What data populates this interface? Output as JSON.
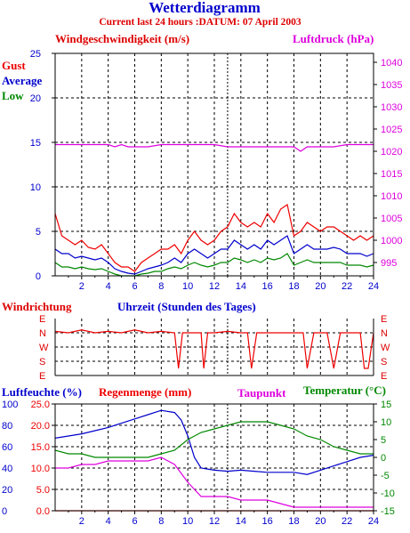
{
  "title": "Wetterdiagramm",
  "subtitle": "Current last 24 hours :DATUM: 07 April 2003",
  "colors": {
    "gust": "#ee0000",
    "average": "#0000cc",
    "low": "#008800",
    "pressure": "#dd00dd",
    "humidity": "#0000cc",
    "rain": "#ee0000",
    "dewpoint": "#dd00dd",
    "temperature": "#008800",
    "axis_left": "#0000cc",
    "axis_wind_left": "#dd0000",
    "axis_pressure": "#dd00dd",
    "axis_temp": "#008800"
  },
  "chart_data": [
    {
      "type": "line",
      "name": "wind-speed-and-pressure",
      "title_left": "Windgeschwindigkeit (m/s)",
      "title_right": "Luftdruck (hPa)",
      "legend": [
        "Gust",
        "Average",
        "Low"
      ],
      "x_range": [
        0,
        24
      ],
      "x_ticks": [
        "2",
        "4",
        "6",
        "8",
        "10",
        "12",
        "14",
        "16",
        "18",
        "20",
        "22",
        "24"
      ],
      "y_left_range": [
        0,
        25
      ],
      "y_left_ticks": [
        "0",
        "5",
        "10",
        "15",
        "20",
        "25"
      ],
      "y_right_range": [
        992,
        1042
      ],
      "y_right_ticks": [
        "995",
        "1000",
        "1005",
        "1010",
        "1015",
        "1020",
        "1025",
        "1030",
        "1035",
        "1040"
      ],
      "marker_x": 13,
      "series": [
        {
          "name": "Gust",
          "x": [
            0,
            0.5,
            1,
            1.5,
            2,
            2.5,
            3,
            3.5,
            4,
            4.5,
            5,
            5.5,
            6,
            6.5,
            7,
            7.5,
            8,
            8.5,
            9,
            9.5,
            10,
            10.5,
            11,
            11.5,
            12,
            12.5,
            13,
            13.5,
            14,
            14.5,
            15,
            15.5,
            16,
            16.5,
            17,
            17.5,
            18,
            18.5,
            19,
            19.5,
            20,
            20.5,
            21,
            21.5,
            22,
            22.5,
            23,
            23.5,
            24
          ],
          "values": [
            7,
            4.5,
            4,
            3.5,
            4,
            3.2,
            3,
            3.5,
            2.5,
            1.5,
            1,
            1,
            0.5,
            1.5,
            2,
            2.5,
            3,
            3,
            3.5,
            2.5,
            4,
            5,
            4,
            3.5,
            4,
            5,
            5.5,
            7,
            6,
            5.5,
            6,
            5.5,
            7,
            6,
            7.5,
            8,
            4.5,
            5,
            6,
            5.5,
            5,
            5.5,
            5.5,
            5,
            4.5,
            4,
            4.5,
            4,
            4.5
          ]
        },
        {
          "name": "Average",
          "x": [
            0,
            0.5,
            1,
            1.5,
            2,
            2.5,
            3,
            3.5,
            4,
            4.5,
            5,
            5.5,
            6,
            6.5,
            7,
            7.5,
            8,
            8.5,
            9,
            9.5,
            10,
            10.5,
            11,
            11.5,
            12,
            12.5,
            13,
            13.5,
            14,
            14.5,
            15,
            15.5,
            16,
            16.5,
            17,
            17.5,
            18,
            18.5,
            19,
            19.5,
            20,
            20.5,
            21,
            21.5,
            22,
            22.5,
            23,
            23.5,
            24
          ],
          "values": [
            3,
            2.5,
            2.5,
            2,
            2.2,
            2,
            1.8,
            2,
            1.5,
            0.8,
            0.5,
            0.3,
            0.2,
            0.5,
            0.8,
            1,
            1.2,
            1.5,
            2,
            1.5,
            2.5,
            3,
            2.5,
            2,
            2.5,
            3,
            3,
            4,
            3.5,
            3,
            3.5,
            3,
            4,
            3.5,
            4,
            4.5,
            2.5,
            3,
            3.5,
            3,
            3,
            3,
            3.2,
            3,
            2.5,
            2.5,
            2.5,
            2.2,
            2.5
          ]
        },
        {
          "name": "Low",
          "x": [
            0,
            0.5,
            1,
            1.5,
            2,
            2.5,
            3,
            3.5,
            4,
            4.5,
            5,
            5.5,
            6,
            6.5,
            7,
            7.5,
            8,
            8.5,
            9,
            9.5,
            10,
            10.5,
            11,
            11.5,
            12,
            12.5,
            13,
            13.5,
            14,
            14.5,
            15,
            15.5,
            16,
            16.5,
            17,
            17.5,
            18,
            18.5,
            19,
            19.5,
            20,
            20.5,
            21,
            21.5,
            22,
            22.5,
            23,
            23.5,
            24
          ],
          "values": [
            1.5,
            1,
            1,
            0.8,
            1,
            0.8,
            0.7,
            0.8,
            0.5,
            0.2,
            0,
            0,
            0,
            0.2,
            0.3,
            0.5,
            0.5,
            0.8,
            1,
            0.8,
            1.2,
            1.5,
            1.2,
            1,
            1.2,
            1.5,
            1.5,
            2,
            1.8,
            1.5,
            1.8,
            1.5,
            2,
            1.8,
            2,
            2.5,
            1.2,
            1.5,
            1.8,
            1.5,
            1.5,
            1.5,
            1.5,
            1.5,
            1.2,
            1.2,
            1.2,
            1,
            1.2
          ]
        },
        {
          "name": "Luftdruck",
          "axis": "right",
          "x": [
            0,
            1,
            2,
            3,
            4,
            4.5,
            5,
            5.5,
            6,
            7,
            8,
            9,
            10,
            11,
            12,
            13,
            14,
            15,
            16,
            17,
            18,
            18.5,
            19,
            20,
            21,
            22,
            23,
            24
          ],
          "values": [
            1021.5,
            1021.5,
            1021.5,
            1021.5,
            1021.5,
            1021,
            1021.5,
            1021,
            1021,
            1021,
            1021.5,
            1021.5,
            1021.5,
            1021.5,
            1021.5,
            1021,
            1021,
            1021,
            1021,
            1021,
            1021,
            1020,
            1021,
            1021,
            1021,
            1021.5,
            1021.5,
            1021.5
          ]
        }
      ]
    },
    {
      "type": "line",
      "name": "wind-direction",
      "title": "Windrichtung",
      "xlabel": "Uhrzeit (Stunden des Tages)",
      "y_ticks": [
        "E",
        "N",
        "W",
        "S",
        "E"
      ],
      "marker_x": 13,
      "series": [
        {
          "name": "Windrichtung",
          "x": [
            0,
            1,
            2,
            3,
            4,
            5,
            6,
            7,
            8,
            9,
            9.3,
            9.6,
            10,
            11,
            11.2,
            11.5,
            12,
            13,
            14,
            14.5,
            14.8,
            15.2,
            16,
            17,
            18,
            18.7,
            19,
            19.5,
            20,
            20.5,
            21,
            21.5,
            22,
            23,
            23.3,
            23.6,
            24
          ],
          "values": [
            0.9,
            1,
            0.8,
            1,
            0.9,
            1,
            0.8,
            1,
            0.9,
            1,
            3.5,
            1,
            1,
            1,
            3.5,
            1,
            1,
            0.9,
            1,
            1,
            3.5,
            1,
            1,
            1,
            1,
            1,
            3.5,
            1,
            1,
            1,
            3.5,
            1,
            1,
            1,
            3.5,
            3.5,
            1
          ]
        }
      ]
    },
    {
      "type": "line",
      "name": "humidity-rain-dewpoint-temperature",
      "title_left_1": "Luftfeuchte (%)",
      "title_left_2": "Regenmenge (mm)",
      "title_mid": "Taupunkt",
      "title_right": "Temperatur (°C)",
      "y_humidity_ticks": [
        "0",
        "20",
        "40",
        "60",
        "80",
        "100"
      ],
      "y_rain_ticks": [
        "0.0",
        "5.0",
        "10.0",
        "15.0",
        "20.0",
        "25.0"
      ],
      "y_temp_ticks": [
        "-15",
        "-10",
        "-5",
        "0",
        "5",
        "10",
        "15"
      ],
      "x_ticks": [
        "2",
        "4",
        "6",
        "8",
        "10",
        "12",
        "14",
        "16",
        "18",
        "20",
        "22",
        "24"
      ],
      "marker_x": 13,
      "series": [
        {
          "name": "Luftfeuchte",
          "x": [
            0,
            1,
            2,
            3,
            4,
            5,
            6,
            7,
            8,
            9,
            9.5,
            10,
            10.5,
            11,
            12,
            13,
            14,
            15,
            16,
            17,
            18,
            19,
            20,
            21,
            22,
            23,
            24
          ],
          "values": [
            68,
            70,
            72,
            75,
            78,
            82,
            86,
            90,
            94,
            92,
            85,
            70,
            50,
            40,
            38,
            37,
            38,
            37,
            36,
            36,
            36,
            34,
            38,
            42,
            46,
            50,
            52
          ]
        },
        {
          "name": "Taupunkt",
          "x": [
            0,
            1,
            2,
            3,
            4,
            5,
            6,
            7,
            8,
            9,
            10,
            11,
            12,
            13,
            14,
            15,
            16,
            17,
            18,
            19,
            20,
            21,
            22,
            23,
            24
          ],
          "values": [
            -3,
            -3,
            -2,
            -2,
            -1,
            -1,
            -1,
            -1,
            0,
            -2,
            -7,
            -11,
            -11,
            -11,
            -12,
            -12,
            -12,
            -13,
            -14,
            -14,
            -14,
            -14,
            -14,
            -14,
            -14
          ]
        },
        {
          "name": "Temperatur",
          "x": [
            0,
            1,
            2,
            3,
            4,
            5,
            6,
            7,
            8,
            9,
            10,
            11,
            12,
            13,
            14,
            15,
            16,
            17,
            18,
            19,
            20,
            21,
            22,
            23,
            24
          ],
          "values": [
            2,
            1,
            1,
            0,
            0,
            0,
            0,
            0,
            1,
            2,
            5,
            7,
            8,
            9,
            10,
            10,
            10,
            9,
            8,
            6,
            5,
            3,
            2,
            1,
            1
          ]
        },
        {
          "name": "Regenmenge",
          "x": [
            0,
            24
          ],
          "values": [
            0,
            0
          ]
        }
      ]
    }
  ]
}
